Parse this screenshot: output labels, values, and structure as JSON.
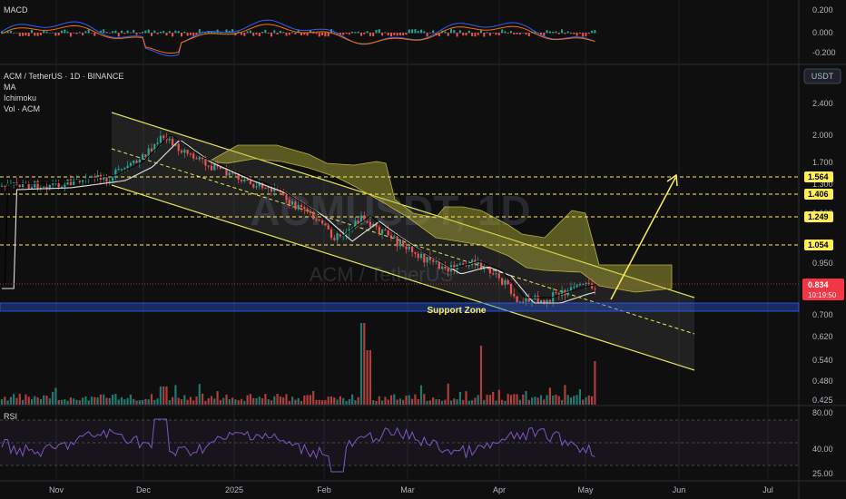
{
  "chart_data": {
    "type": "candlestick",
    "symbol_title": "ACM / TetherUS · 1D · BINANCE",
    "watermark": "ACMUSDT, 1D",
    "watermark_sub": "ACM / TetherUS",
    "indicators": [
      "MA",
      "Ichimoku",
      "Vol · ACM"
    ],
    "currency": "USDT",
    "x_ticks": [
      "Nov",
      "Dec",
      "2025",
      "Feb",
      "Mar",
      "Apr",
      "May",
      "Jun",
      "Jul"
    ],
    "price_axis": [
      "2.400",
      "2.000",
      "1.700",
      "1.300",
      "1.100",
      "0.950",
      "0.700",
      "0.620",
      "0.540",
      "0.480",
      "0.425"
    ],
    "levels": [
      {
        "value": "1.564",
        "color": "#ffee58"
      },
      {
        "value": "1.406",
        "color": "#ffee58"
      },
      {
        "value": "1.249",
        "color": "#ffee58"
      },
      {
        "value": "1.054",
        "color": "#ffee58"
      }
    ],
    "last_price": {
      "value": "0.834",
      "countdown": "10:19:50",
      "color": "#f23645"
    },
    "support_label": "Support Zone",
    "macd": {
      "title": "MACD",
      "ticks": [
        "0.200",
        "0.000",
        "-0.200"
      ]
    },
    "rsi": {
      "title": "RSI",
      "ticks": [
        "80.00",
        "40.00",
        "25.00"
      ]
    },
    "colors": {
      "up": "#26a69a",
      "down": "#ef5350",
      "channel": "#e6e65a",
      "support": "#2962ff",
      "rsi_line": "#7e57c2"
    }
  }
}
